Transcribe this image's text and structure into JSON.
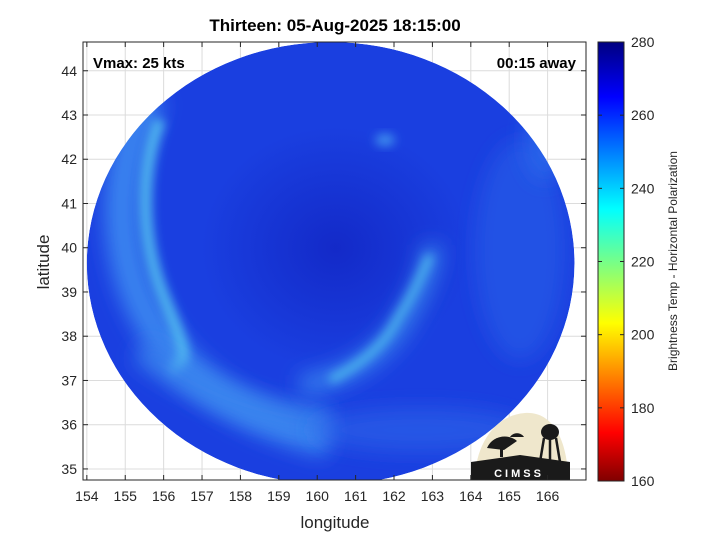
{
  "title": "Thirteen: 05-Aug-2025 18:15:00",
  "annotations": {
    "vmax": "Vmax: 25 kts",
    "time_away": "00:15 away"
  },
  "logo_text": "CIMSS",
  "colors": {
    "background": "#ffffff",
    "frame": "#262626",
    "grid": "#dcdcdc",
    "storm_base": "#1a3fe0",
    "storm_core": "#1226c4",
    "cloud_band": "#3c8cf0",
    "cloud_band_bright": "#50bfee",
    "logo_bg": "#efe7cc",
    "logo_ink": "#1a1a1a"
  },
  "chart_data": {
    "type": "heatmap",
    "title": "Thirteen: 05-Aug-2025 18:15:00",
    "xlabel": "longitude",
    "ylabel": "latitude",
    "xlim": [
      153.9,
      167.0
    ],
    "ylim": [
      34.75,
      44.65
    ],
    "xticks": [
      154,
      155,
      156,
      157,
      158,
      159,
      160,
      161,
      162,
      163,
      164,
      165,
      166
    ],
    "yticks": [
      35,
      36,
      37,
      38,
      39,
      40,
      41,
      42,
      43,
      44
    ],
    "grid": true,
    "swath": {
      "center_lon": 160.35,
      "center_lat": 39.65,
      "lon_radius": 6.35,
      "lat_radius": 5.0
    },
    "colorbar": {
      "label": "Brightness Temp - Horizontal Polarization",
      "range": [
        160,
        280
      ],
      "ticks": [
        160,
        180,
        200,
        220,
        240,
        260,
        280
      ],
      "colormap": "jet"
    },
    "field_summary": {
      "background_value": 268,
      "core_value": 274,
      "bright_band_values": [
        {
          "lon": 155.3,
          "lat": 40.5,
          "value": 252
        },
        {
          "lon": 156.5,
          "lat": 37.3,
          "value": 249
        },
        {
          "lon": 161.0,
          "lat": 37.0,
          "value": 247
        },
        {
          "lon": 162.0,
          "lat": 38.2,
          "value": 253
        },
        {
          "lon": 162.9,
          "lat": 39.7,
          "value": 256
        },
        {
          "lon": 161.6,
          "lat": 42.4,
          "value": 252
        }
      ]
    }
  }
}
